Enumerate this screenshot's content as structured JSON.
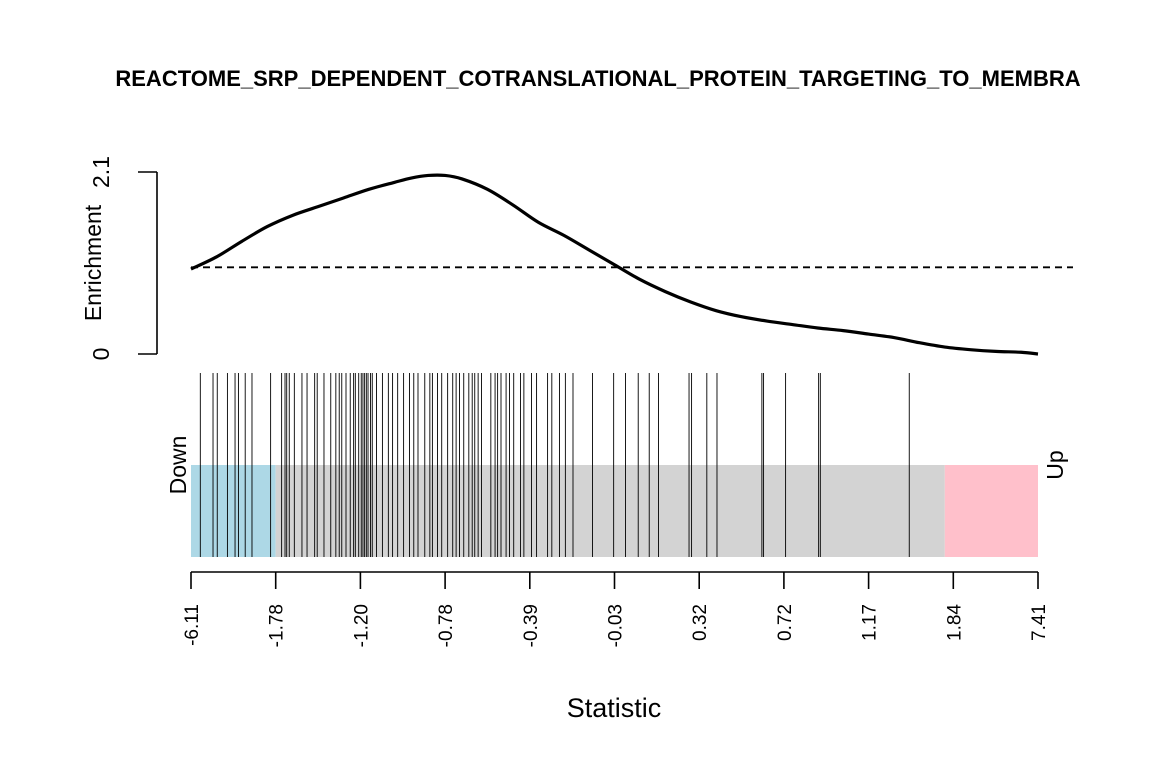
{
  "chart_data": {
    "type": "barcode",
    "title": "REACTOME_SRP_DEPENDENT_COTRANSLATIONAL_PROTEIN_TARGETING_TO_MEMBRA",
    "xlabel": "Statistic",
    "ylabel": "Enrichment",
    "y_ticks": [
      "0",
      "2.1"
    ],
    "ylim": [
      0,
      2.1
    ],
    "baseline_enrichment": 1.0,
    "x_tick_labels": [
      "-6.11",
      "-1.78",
      "-1.20",
      "-0.78",
      "-0.39",
      "-0.03",
      "0.32",
      "0.72",
      "1.17",
      "1.84",
      "7.41"
    ],
    "x_tick_positions": [
      0,
      0.1,
      0.2,
      0.3,
      0.4,
      0.5,
      0.6,
      0.7,
      0.8,
      0.9,
      1.0
    ],
    "down_label": "Down",
    "up_label": "Up",
    "regions": [
      {
        "name": "Down",
        "from": 0.0,
        "to": 0.1,
        "color": "#add8e6"
      },
      {
        "name": "Neutral",
        "from": 0.1,
        "to": 0.89,
        "color": "#d3d3d3"
      },
      {
        "name": "Up",
        "from": 0.89,
        "to": 1.0,
        "color": "#ffc0cb"
      }
    ],
    "barcode_positions": [
      0.011,
      0.026,
      0.031,
      0.043,
      0.052,
      0.056,
      0.064,
      0.072,
      0.094,
      0.107,
      0.111,
      0.113,
      0.116,
      0.122,
      0.131,
      0.137,
      0.146,
      0.149,
      0.157,
      0.165,
      0.171,
      0.175,
      0.178,
      0.183,
      0.188,
      0.192,
      0.194,
      0.198,
      0.201,
      0.203,
      0.205,
      0.207,
      0.209,
      0.212,
      0.214,
      0.219,
      0.226,
      0.233,
      0.238,
      0.244,
      0.251,
      0.258,
      0.263,
      0.268,
      0.276,
      0.282,
      0.285,
      0.291,
      0.296,
      0.303,
      0.309,
      0.313,
      0.317,
      0.322,
      0.328,
      0.332,
      0.335,
      0.339,
      0.343,
      0.354,
      0.359,
      0.362,
      0.366,
      0.372,
      0.376,
      0.381,
      0.389,
      0.393,
      0.402,
      0.408,
      0.421,
      0.426,
      0.435,
      0.442,
      0.451,
      0.474,
      0.499,
      0.513,
      0.528,
      0.541,
      0.552,
      0.588,
      0.591,
      0.609,
      0.621,
      0.674,
      0.676,
      0.702,
      0.741,
      0.743,
      0.848
    ],
    "curve": [
      [
        0.0,
        0.98
      ],
      [
        0.03,
        1.12
      ],
      [
        0.06,
        1.3
      ],
      [
        0.09,
        1.47
      ],
      [
        0.12,
        1.6
      ],
      [
        0.15,
        1.7
      ],
      [
        0.18,
        1.8
      ],
      [
        0.21,
        1.9
      ],
      [
        0.24,
        1.98
      ],
      [
        0.26,
        2.03
      ],
      [
        0.28,
        2.06
      ],
      [
        0.3,
        2.06
      ],
      [
        0.32,
        2.02
      ],
      [
        0.35,
        1.9
      ],
      [
        0.38,
        1.72
      ],
      [
        0.41,
        1.52
      ],
      [
        0.44,
        1.37
      ],
      [
        0.47,
        1.2
      ],
      [
        0.5,
        1.03
      ],
      [
        0.53,
        0.86
      ],
      [
        0.56,
        0.72
      ],
      [
        0.59,
        0.6
      ],
      [
        0.62,
        0.5
      ],
      [
        0.65,
        0.43
      ],
      [
        0.68,
        0.38
      ],
      [
        0.71,
        0.34
      ],
      [
        0.74,
        0.3
      ],
      [
        0.77,
        0.27
      ],
      [
        0.8,
        0.23
      ],
      [
        0.83,
        0.19
      ],
      [
        0.86,
        0.13
      ],
      [
        0.89,
        0.08
      ],
      [
        0.92,
        0.05
      ],
      [
        0.95,
        0.03
      ],
      [
        0.98,
        0.02
      ],
      [
        1.0,
        0.0
      ]
    ],
    "colors": {
      "line": "#000000",
      "down": "#add8e6",
      "neutral": "#d3d3d3",
      "up": "#ffc0cb"
    }
  }
}
